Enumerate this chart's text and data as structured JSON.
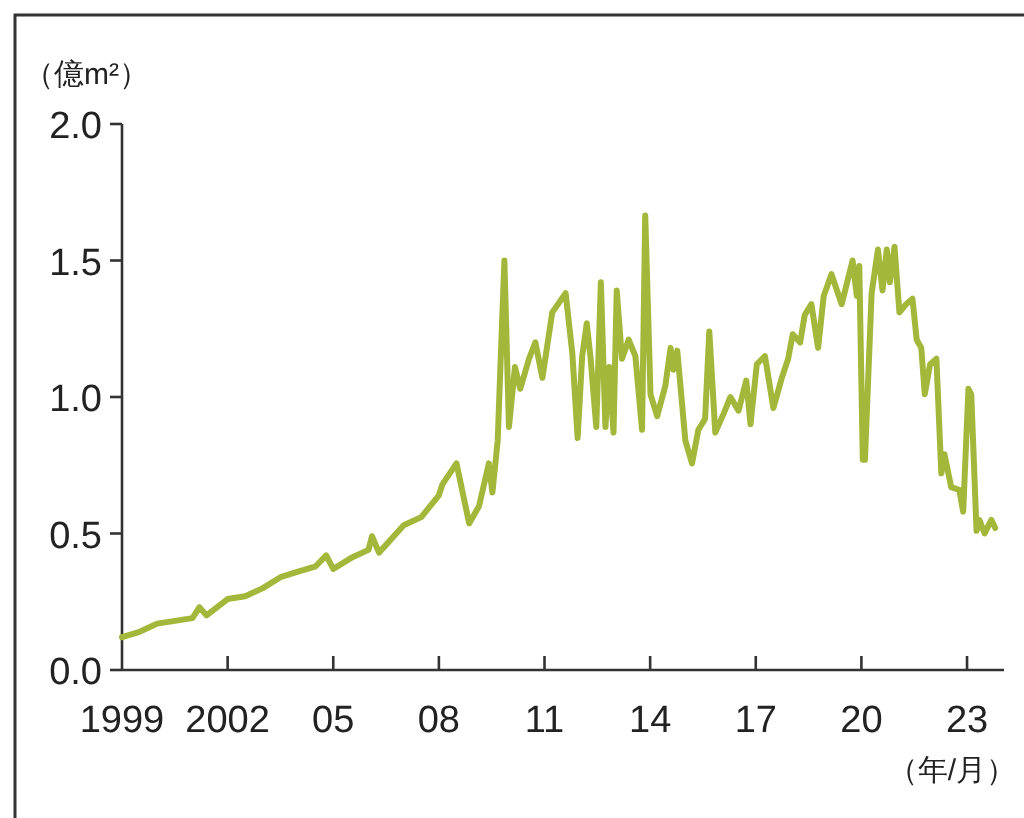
{
  "chart_data": {
    "type": "line",
    "ylabel": "（億m²）",
    "xlabel": "（年/月）",
    "color": "#a3b83b",
    "xlim": [
      1999,
      2024.05
    ],
    "ylim": [
      0,
      2
    ],
    "xticks": [
      1999,
      2002,
      {
        "value": 2005,
        "label": "05"
      },
      {
        "value": 2008,
        "label": "08"
      },
      {
        "value": 2011,
        "label": "11"
      },
      {
        "value": 2014,
        "label": "14"
      },
      {
        "value": 2017,
        "label": "17"
      },
      {
        "value": 2020,
        "label": "20"
      },
      {
        "value": 2023,
        "label": "23"
      }
    ],
    "yticks": [
      {
        "value": 0,
        "label": "0.0"
      },
      0.5,
      {
        "value": 1,
        "label": "1.0"
      },
      1.5,
      {
        "value": 2,
        "label": "2.0"
      }
    ],
    "grid": false,
    "x": [
      1999.0,
      1999.5,
      2000.0,
      2000.5,
      2001.0,
      2001.2,
      2001.4,
      2002.0,
      2002.5,
      2003.0,
      2003.5,
      2004.0,
      2004.5,
      2004.8,
      2005.0,
      2005.5,
      2006.0,
      2006.1,
      2006.3,
      2007.0,
      2007.5,
      2008.0,
      2008.1,
      2008.5,
      2008.86,
      2009.14,
      2009.42,
      2009.52,
      2009.67,
      2009.86,
      2009.99,
      2010.16,
      2010.31,
      2010.56,
      2010.74,
      2010.94,
      2011.22,
      2011.6,
      2011.79,
      2011.94,
      2012.07,
      2012.2,
      2012.31,
      2012.47,
      2012.6,
      2012.73,
      2012.84,
      2012.96,
      2013.05,
      2013.2,
      2013.39,
      2013.58,
      2013.77,
      2013.86,
      2014.01,
      2014.2,
      2014.43,
      2014.58,
      2014.66,
      2014.77,
      2015.0,
      2015.19,
      2015.37,
      2015.56,
      2015.68,
      2015.85,
      2016.09,
      2016.28,
      2016.51,
      2016.73,
      2016.85,
      2017.03,
      2017.26,
      2017.5,
      2017.74,
      2017.92,
      2018.05,
      2018.26,
      2018.39,
      2018.58,
      2018.77,
      2018.93,
      2019.15,
      2019.44,
      2019.75,
      2019.87,
      2019.94,
      2020.04,
      2020.1,
      2020.29,
      2020.47,
      2020.6,
      2020.72,
      2020.81,
      2020.94,
      2021.08,
      2021.27,
      2021.45,
      2021.57,
      2021.7,
      2021.8,
      2021.95,
      2022.13,
      2022.27,
      2022.36,
      2022.55,
      2022.78,
      2022.89,
      2023.04,
      2023.12,
      2023.27,
      2023.35,
      2023.5,
      2023.69,
      2023.8
    ],
    "values": [
      0.12,
      0.14,
      0.17,
      0.18,
      0.19,
      0.23,
      0.2,
      0.26,
      0.27,
      0.3,
      0.34,
      0.36,
      0.38,
      0.42,
      0.37,
      0.41,
      0.44,
      0.49,
      0.43,
      0.53,
      0.56,
      0.64,
      0.68,
      0.757,
      0.537,
      0.6,
      0.757,
      0.65,
      0.84,
      1.5,
      0.89,
      1.11,
      1.03,
      1.14,
      1.2,
      1.07,
      1.31,
      1.38,
      1.16,
      0.85,
      1.15,
      1.27,
      1.14,
      0.89,
      1.42,
      0.89,
      1.11,
      0.87,
      1.39,
      1.14,
      1.21,
      1.15,
      0.88,
      1.665,
      1.01,
      0.93,
      1.04,
      1.18,
      1.1,
      1.17,
      0.84,
      0.757,
      0.88,
      0.92,
      1.24,
      0.87,
      0.94,
      1.0,
      0.95,
      1.06,
      0.9,
      1.12,
      1.15,
      0.96,
      1.07,
      1.14,
      1.23,
      1.2,
      1.3,
      1.34,
      1.18,
      1.37,
      1.45,
      1.34,
      1.5,
      1.37,
      1.48,
      0.77,
      0.77,
      1.38,
      1.54,
      1.39,
      1.54,
      1.42,
      1.55,
      1.31,
      1.34,
      1.36,
      1.21,
      1.18,
      1.01,
      1.12,
      1.14,
      0.72,
      0.79,
      0.67,
      0.66,
      0.58,
      1.03,
      1.01,
      0.51,
      0.55,
      0.5,
      0.55,
      0.52
    ]
  }
}
